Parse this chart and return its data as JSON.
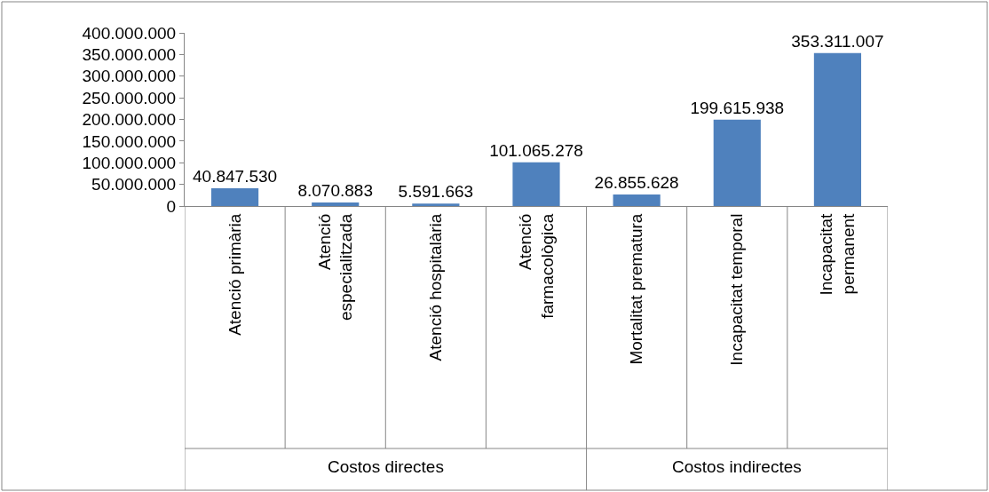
{
  "chart_data": {
    "type": "bar",
    "categories": [
      "Atenció primària",
      "Atenció\nespecialitzada",
      "Atenció hospitalària",
      "Atenció\nfarmacològica",
      "Mortalitat prematura",
      "Incapacitat temporal",
      "Incapacitat\npermanent"
    ],
    "values": [
      40847530,
      8070883,
      5591663,
      101065278,
      26855628,
      199615938,
      353311007
    ],
    "value_labels": [
      "40.847.530",
      "8.070.883",
      "5.591.663",
      "101.065.278",
      "26.855.628",
      "199.615.938",
      "353.311.007"
    ],
    "color": "#4f81bd",
    "ylim": [
      0,
      400000000
    ],
    "yticks": [
      {
        "value": 0,
        "label": "0"
      },
      {
        "value": 50000000,
        "label": "50.000.000"
      },
      {
        "value": 100000000,
        "label": "100.000.000"
      },
      {
        "value": 150000000,
        "label": "150.000.000"
      },
      {
        "value": 200000000,
        "label": "200.000.000"
      },
      {
        "value": 250000000,
        "label": "250.000.000"
      },
      {
        "value": 300000000,
        "label": "300.000.000"
      },
      {
        "value": 350000000,
        "label": "350.000.000"
      },
      {
        "value": 400000000,
        "label": "400.000.000"
      }
    ],
    "annotations": [
      "Costos directes",
      "Costos indirectes"
    ],
    "grid": false
  }
}
